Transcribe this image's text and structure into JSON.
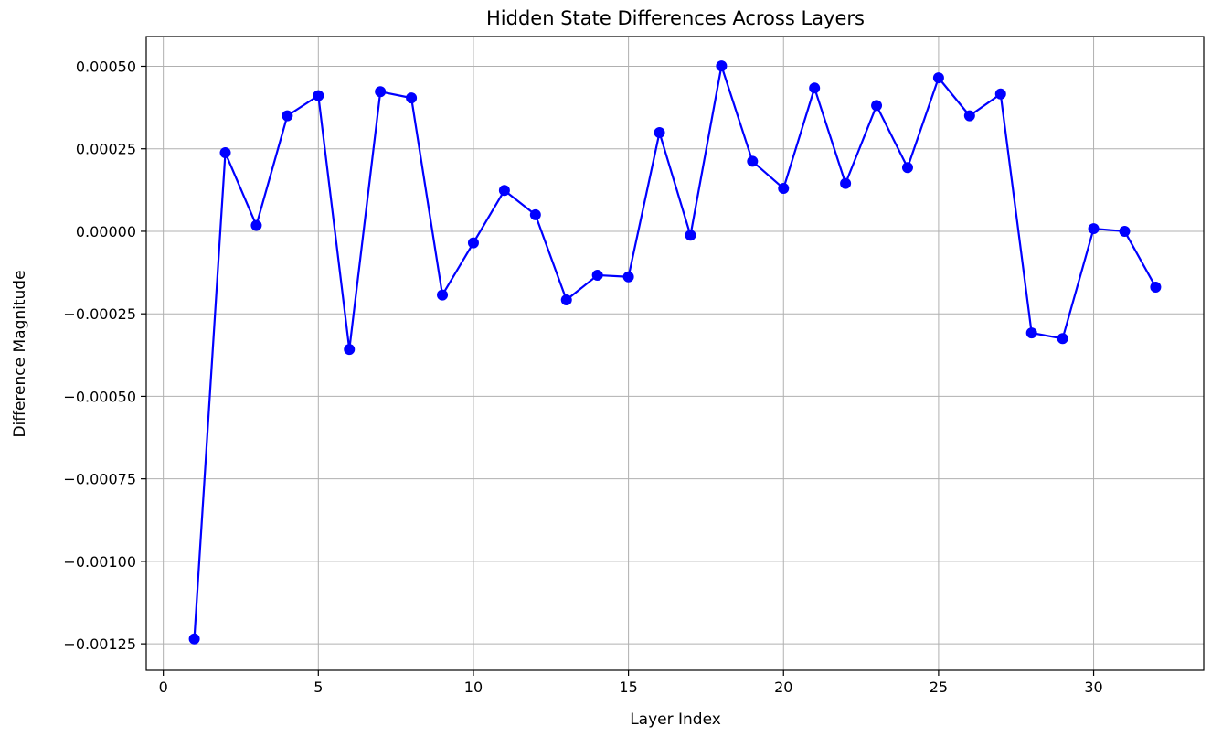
{
  "chart_data": {
    "type": "line",
    "title": "Hidden State Differences Across Layers",
    "xlabel": "Layer Index",
    "ylabel": "Difference Magnitude",
    "xlim": [
      -0.55,
      33.55
    ],
    "ylim": [
      -0.00133,
      0.00059
    ],
    "grid": true,
    "line_color": "#0000ff",
    "marker": "circle",
    "x_ticks": [
      {
        "value": 0,
        "label": "0"
      },
      {
        "value": 5,
        "label": "5"
      },
      {
        "value": 10,
        "label": "10"
      },
      {
        "value": 15,
        "label": "15"
      },
      {
        "value": 20,
        "label": "20"
      },
      {
        "value": 25,
        "label": "25"
      },
      {
        "value": 30,
        "label": "30"
      }
    ],
    "y_ticks": [
      {
        "value": 0.0005,
        "label": "0.00050"
      },
      {
        "value": 0.00025,
        "label": "0.00025"
      },
      {
        "value": 0.0,
        "label": "0.00000"
      },
      {
        "value": -0.00025,
        "label": "−0.00025"
      },
      {
        "value": -0.0005,
        "label": "−0.00050"
      },
      {
        "value": -0.00075,
        "label": "−0.00075"
      },
      {
        "value": -0.001,
        "label": "−0.00100"
      },
      {
        "value": -0.00125,
        "label": "−0.00125"
      }
    ],
    "x": [
      1,
      2,
      3,
      4,
      5,
      6,
      7,
      8,
      9,
      10,
      11,
      12,
      13,
      14,
      15,
      16,
      17,
      18,
      19,
      20,
      21,
      22,
      23,
      24,
      25,
      26,
      27,
      28,
      29,
      30,
      31,
      32
    ],
    "y": [
      -0.001235,
      0.000238,
      1.8e-05,
      0.00035,
      0.000411,
      -0.000358,
      0.000423,
      0.000404,
      -0.000193,
      -3.5e-05,
      0.000124,
      5e-05,
      -0.000208,
      -0.000133,
      -0.000138,
      0.000299,
      -1.2e-05,
      0.000501,
      0.000212,
      0.00013,
      0.000434,
      0.000145,
      0.000381,
      0.000193,
      0.000465,
      0.00035,
      0.000416,
      -0.000308,
      -0.000325,
      8e-06,
      0.0,
      -0.000169
    ]
  }
}
